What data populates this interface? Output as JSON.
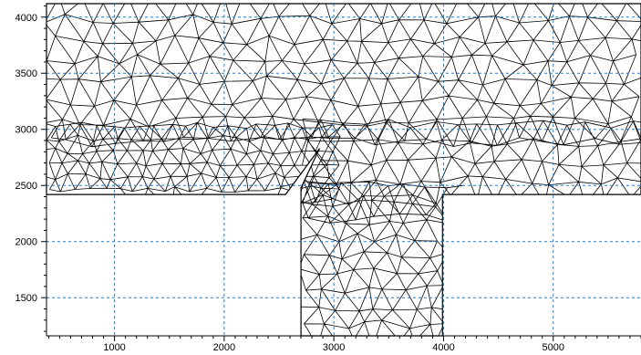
{
  "plot": {
    "x_axis": {
      "min": 380,
      "max": 5800,
      "ticks": [
        1000,
        2000,
        3000,
        4000,
        5000
      ],
      "tick_labels": [
        "1000",
        "2000",
        "3000",
        "4000",
        "5000"
      ]
    },
    "y_axis": {
      "min": 1160,
      "max": 4120,
      "ticks": [
        1500,
        2000,
        2500,
        3000,
        3500,
        4000
      ],
      "tick_labels": [
        "1500",
        "2000",
        "2500",
        "3000",
        "3500",
        "4000"
      ]
    },
    "grid": {
      "visible": true,
      "style": "dashed",
      "color": "#1e7fd8"
    },
    "colors": {
      "mesh_line": "#000000",
      "background": "#ffffff",
      "axis": "#000000"
    }
  },
  "geometry": {
    "description_units": "data",
    "domain_outline": [
      [
        380,
        4120
      ],
      [
        5800,
        4120
      ],
      [
        5800,
        2420
      ],
      [
        3990,
        2420
      ],
      [
        3990,
        1160
      ],
      [
        2700,
        1160
      ],
      [
        2700,
        2480
      ],
      [
        2870,
        2830
      ],
      [
        2870,
        2830
      ]
    ],
    "upper_left_band": {
      "x_from": 380,
      "x_to": 2700,
      "y_from": 2420,
      "y_to": 4120
    },
    "upper_right_band": {
      "x_from": 2700,
      "x_to": 5800,
      "y_from": 2420,
      "y_to": 4120
    },
    "channel": {
      "x_from": 2700,
      "x_to": 3990,
      "y_from": 1160,
      "y_to": 2420
    },
    "slot_bottom_y": 2420,
    "slot_left_x": 2540,
    "slot_diag_top": [
      2870,
      2830
    ]
  }
}
